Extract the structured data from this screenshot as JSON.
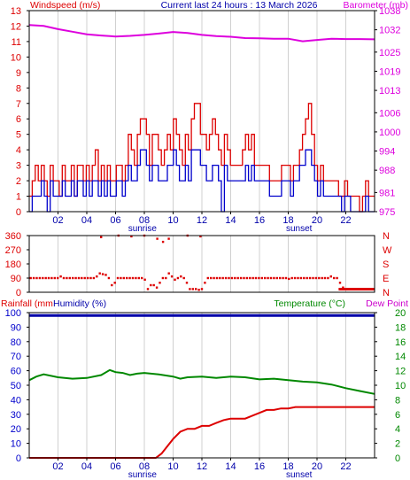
{
  "colors": {
    "wind_gust": "#dd0000",
    "wind_avg": "#0000cc",
    "pressure": "#dd00dd",
    "direction": "#dd0000",
    "rain": "#dd0000",
    "humidity": "#0000aa",
    "temperature": "#008800",
    "dewpoint": "#cc00cc",
    "grid": "#d0d0d0",
    "axis": "#000000"
  },
  "chart_data": [
    {
      "type": "line",
      "panel": "wind",
      "title": "Current last 24 hours : 13 March 2026",
      "left_label": "Windspeed (m/s)",
      "right_label": "Barometer (mb)",
      "left_ticks": [
        "0",
        "1",
        "2",
        "3",
        "4",
        "5",
        "6",
        "7",
        "8",
        "9",
        "10",
        "11",
        "12",
        "13"
      ],
      "right_ticks": [
        "975",
        "981",
        "988",
        "994",
        "1000",
        "1006",
        "1013",
        "1019",
        "1025",
        "1032",
        "1038"
      ],
      "right_range": [
        975,
        1038
      ],
      "ylim": [
        0,
        13
      ],
      "x_range": [
        0,
        24
      ],
      "x_ticks": [
        "02",
        "04",
        "06",
        "08",
        "10",
        "12",
        "14",
        "16",
        "18",
        "20",
        "22"
      ],
      "annotations": [
        "sunrise",
        "sunset"
      ],
      "sunrise_hour": 7.25,
      "sunset_hour": 18.75,
      "series": [
        {
          "key": "gust",
          "values": [
            1,
            2,
            3,
            2,
            3,
            2,
            1,
            3,
            2,
            2,
            1,
            3,
            2,
            2,
            3,
            1,
            3,
            3,
            2,
            3,
            2,
            3,
            4,
            2,
            3,
            2,
            3,
            2,
            2,
            3,
            3,
            2,
            3,
            5,
            4,
            3,
            5,
            6,
            6,
            5,
            3,
            5,
            5,
            4,
            3,
            4,
            5,
            4,
            6,
            5,
            4,
            3,
            5,
            4,
            6,
            7,
            7,
            5,
            5,
            4,
            5,
            6,
            5,
            4,
            3,
            5,
            4,
            3,
            3,
            3,
            3,
            4,
            5,
            4,
            5,
            3,
            3,
            3,
            3,
            3,
            2,
            2,
            2,
            2,
            3,
            3,
            3,
            2,
            3,
            3,
            4,
            5,
            6,
            7,
            5,
            3,
            2,
            3,
            2,
            2,
            2,
            2,
            2,
            1,
            1,
            2,
            1,
            1,
            1,
            1,
            0,
            1,
            2,
            1,
            1
          ]
        },
        {
          "key": "average",
          "values": [
            0,
            1,
            1,
            1,
            2,
            1,
            0,
            2,
            1,
            1,
            1,
            2,
            1,
            1,
            2,
            1,
            2,
            2,
            1,
            2,
            1,
            2,
            2,
            1,
            2,
            1,
            2,
            1,
            1,
            2,
            2,
            1,
            2,
            3,
            2,
            2,
            3,
            4,
            4,
            3,
            2,
            3,
            3,
            2,
            2,
            2,
            3,
            3,
            4,
            3,
            2,
            2,
            3,
            2,
            4,
            4,
            4,
            3,
            3,
            2,
            2,
            3,
            3,
            2,
            0,
            3,
            2,
            2,
            2,
            2,
            2,
            2,
            3,
            2,
            3,
            2,
            2,
            2,
            2,
            2,
            1,
            1,
            1,
            1,
            2,
            2,
            2,
            1,
            2,
            2,
            3,
            3,
            4,
            4,
            3,
            2,
            1,
            2,
            1,
            1,
            1,
            1,
            1,
            1,
            0,
            1,
            1,
            0,
            0,
            0,
            0,
            0,
            1,
            0,
            0
          ]
        },
        {
          "key": "pressure",
          "x": [
            0,
            1,
            2,
            3,
            4,
            5,
            6,
            7,
            8,
            9,
            10,
            11,
            12,
            13,
            14,
            15,
            16,
            17,
            18,
            19,
            20,
            21,
            22,
            23,
            24
          ],
          "values": [
            1033.5,
            1033.2,
            1032.2,
            1031.4,
            1030.6,
            1030.2,
            1029.9,
            1030.1,
            1030.4,
            1030.8,
            1031.3,
            1031.0,
            1030.4,
            1030.0,
            1029.8,
            1029.4,
            1029.3,
            1029.2,
            1029.2,
            1028.4,
            1028.8,
            1029.2,
            1029.1,
            1029.1,
            1029.0
          ]
        }
      ]
    },
    {
      "type": "scatter",
      "panel": "direction",
      "left_ticks": [
        "0",
        "90",
        "180",
        "270",
        "360"
      ],
      "right_ticks": [
        "N",
        "E",
        "S",
        "W",
        "N"
      ],
      "ylim": [
        0,
        360
      ],
      "x_range": [
        0,
        24
      ],
      "series": [
        {
          "key": "direction",
          "values": [
            90,
            90,
            90,
            90,
            90,
            90,
            90,
            90,
            90,
            90,
            100,
            90,
            90,
            90,
            90,
            90,
            90,
            90,
            90,
            90,
            90,
            90,
            100,
            120,
            115,
            110,
            90,
            45,
            60,
            90,
            90,
            90,
            90,
            90,
            90,
            90,
            90,
            90,
            80,
            20,
            45,
            45,
            30,
            60,
            90,
            90,
            120,
            100,
            80,
            90,
            100,
            90,
            60,
            20,
            20,
            20,
            15,
            20,
            60,
            90,
            90,
            90,
            90,
            90,
            90,
            90,
            90,
            90,
            90,
            90,
            90,
            90,
            90,
            90,
            90,
            90,
            90,
            90,
            90,
            90,
            90,
            90,
            90,
            90,
            90,
            90,
            85,
            90,
            90,
            90,
            90,
            90,
            90,
            90,
            90,
            90,
            90,
            90,
            90,
            90,
            100,
            90,
            90,
            60,
            30,
            20,
            20,
            20,
            20,
            20,
            20,
            20,
            20,
            20,
            20
          ]
        },
        {
          "key": "outliers",
          "x": [
            5.0,
            6.2,
            7.1,
            8.0,
            8.9,
            9.3,
            9.7,
            11.0,
            11.9
          ],
          "values": [
            350,
            360,
            355,
            360,
            340,
            320,
            340,
            360,
            355
          ]
        }
      ]
    },
    {
      "type": "line",
      "panel": "rain-humidity-temp",
      "left_label_1": "Rainfall (mm",
      "left_label_2": "Humidity (%)",
      "right_label_1": "Temperature (°C)",
      "right_label_2": "Dew Point",
      "left_ticks": [
        "0",
        "10",
        "20",
        "30",
        "40",
        "50",
        "60",
        "70",
        "80",
        "90",
        "100"
      ],
      "right_ticks": [
        "0",
        "2",
        "4",
        "6",
        "8",
        "10",
        "12",
        "14",
        "16",
        "18",
        "20"
      ],
      "ylim": [
        0,
        100
      ],
      "right_range": [
        0,
        20
      ],
      "x_range": [
        0,
        24
      ],
      "x_ticks": [
        "02",
        "04",
        "06",
        "08",
        "10",
        "12",
        "14",
        "16",
        "18",
        "20",
        "22"
      ],
      "annotations": [
        "sunrise",
        "sunset"
      ],
      "series": [
        {
          "key": "humidity",
          "x": [
            0,
            24
          ],
          "values": [
            98,
            98
          ]
        },
        {
          "key": "temperature",
          "x": [
            0,
            0.5,
            1,
            2,
            3,
            4,
            5,
            5.6,
            6,
            6.5,
            7,
            7.5,
            8,
            9,
            10,
            10.5,
            11,
            12,
            13,
            14,
            15,
            16,
            17,
            18,
            19,
            20,
            21,
            22,
            23,
            24
          ],
          "values": [
            10.7,
            11.2,
            11.5,
            11.1,
            10.9,
            11.0,
            11.4,
            12.1,
            11.8,
            11.7,
            11.4,
            11.6,
            11.7,
            11.5,
            11.2,
            10.9,
            11.1,
            11.2,
            11.0,
            11.2,
            11.1,
            10.8,
            10.9,
            10.7,
            10.5,
            10.4,
            10.1,
            9.6,
            9.2,
            8.8
          ]
        },
        {
          "key": "rain",
          "x": [
            0,
            8.8,
            9.2,
            9.6,
            10,
            10.5,
            11,
            11.5,
            12,
            12.5,
            13,
            13.5,
            14,
            15,
            15.5,
            16,
            16.5,
            17,
            17.5,
            18,
            18.5,
            24
          ],
          "values": [
            0,
            0,
            3,
            8,
            13,
            18,
            20,
            20,
            22,
            22,
            24,
            26,
            27,
            27,
            29,
            31,
            33,
            33,
            34,
            34,
            35,
            35
          ]
        }
      ]
    }
  ]
}
